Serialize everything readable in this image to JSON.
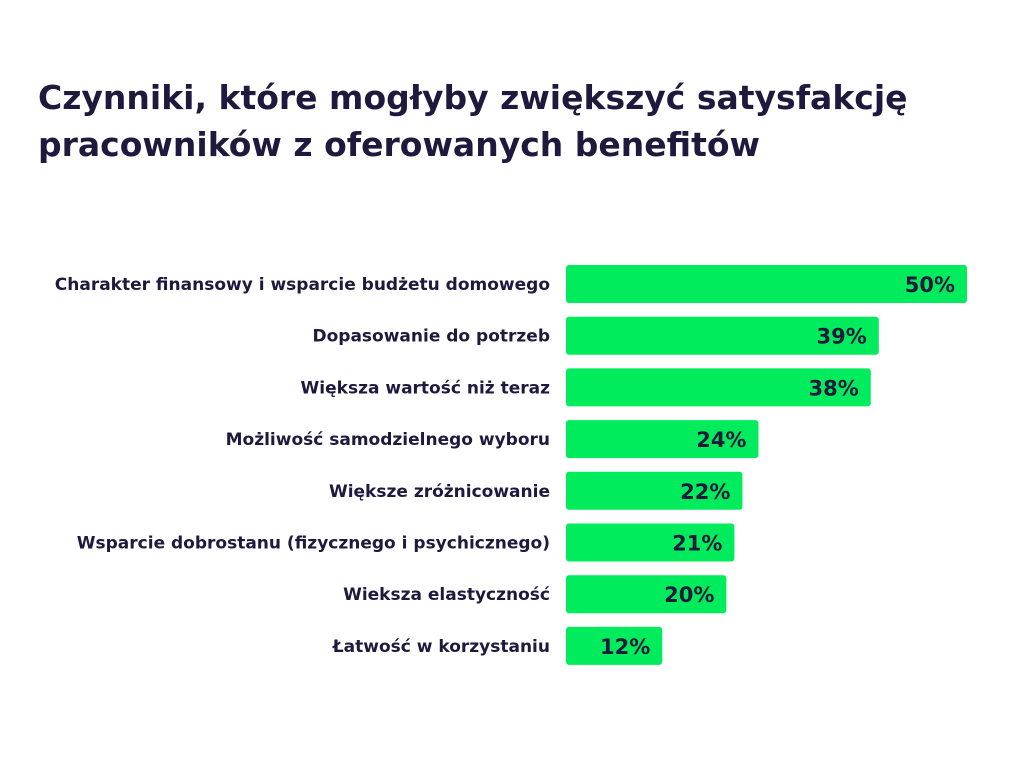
{
  "chart_data": {
    "type": "bar",
    "orientation": "horizontal",
    "title": "Czynniki, które mogłyby zwiększyć satysfakcję pracowników z oferowanych benefitów",
    "categories": [
      "Charakter finansowy i wsparcie budżetu domowego",
      "Dopasowanie do potrzeb",
      "Większa wartość niż teraz",
      "Możliwość samodzielnego wyboru",
      "Większe zróżnicowanie",
      "Wsparcie dobrostanu (fizycznego i psychicznego)",
      "Wieksza elastyczność",
      "Łatwość w korzystaniu"
    ],
    "values": [
      50,
      39,
      38,
      24,
      22,
      21,
      20,
      12
    ],
    "value_labels": [
      "50%",
      "39%",
      "38%",
      "24%",
      "22%",
      "21%",
      "20%",
      "12%"
    ],
    "unit": "%",
    "xlim": [
      0,
      50
    ],
    "grid": false,
    "legend": "none",
    "colors": {
      "bar": "#00ec5c",
      "text": "#1f1a3d",
      "background": "#ffffff"
    }
  }
}
